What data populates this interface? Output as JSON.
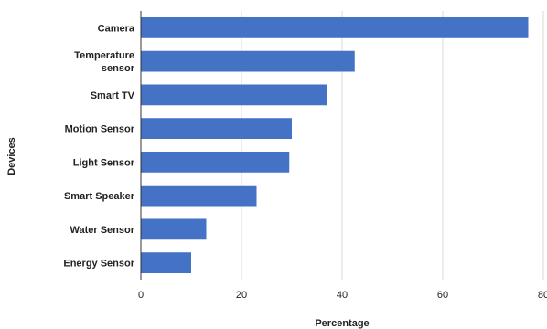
{
  "chart_data": {
    "type": "bar",
    "orientation": "horizontal",
    "categories": [
      [
        "Camera"
      ],
      [
        "Temperature",
        "sensor"
      ],
      [
        "Smart TV"
      ],
      [
        "Motion Sensor"
      ],
      [
        "Light Sensor"
      ],
      [
        "Smart Speaker"
      ],
      [
        "Water Sensor"
      ],
      [
        "Energy Sensor"
      ]
    ],
    "values": [
      77,
      42.5,
      37,
      30,
      29.5,
      23,
      13,
      10
    ],
    "xlabel": "Percentage",
    "ylabel": "Devices",
    "xlim": [
      0,
      80
    ],
    "xticks": [
      "0",
      "20",
      "40",
      "60",
      "80"
    ],
    "xtick_values": [
      0,
      20,
      40,
      60,
      80
    ],
    "grid": "vertical",
    "bar_color": "#4472c4",
    "grid_color": "#d9d9d9",
    "axis_color": "#333333"
  }
}
